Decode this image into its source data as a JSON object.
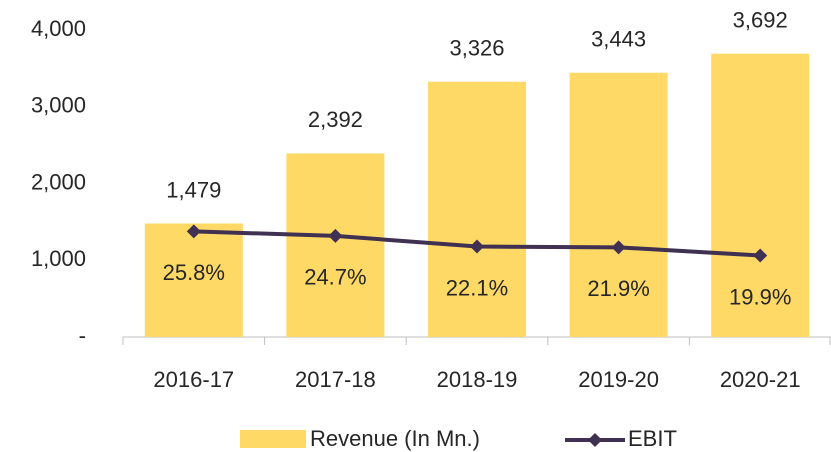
{
  "chart_data": {
    "type": "bar_line",
    "categories": [
      "2016-17",
      "2017-18",
      "2018-19",
      "2019-20",
      "2020-21"
    ],
    "series": [
      {
        "name": "Revenue (In Mn.)",
        "type": "bar",
        "color": "#ffd966",
        "values": [
          1479,
          2392,
          3326,
          3443,
          3692
        ],
        "value_labels": [
          "1,479",
          "2,392",
          "3,326",
          "3,443",
          "3,692"
        ]
      },
      {
        "name": "EBIT",
        "type": "line",
        "axis": "y2",
        "color": "#403152",
        "values": [
          25.8,
          24.7,
          22.1,
          21.9,
          19.9
        ],
        "value_labels": [
          "25.8%",
          "24.7%",
          "22.1%",
          "21.9%",
          "19.9%"
        ]
      }
    ],
    "ylim": [
      0,
      4000
    ],
    "yticks": [
      {
        "value": 0,
        "label": "-"
      },
      {
        "value": 1000,
        "label": "1,000"
      },
      {
        "value": 2000,
        "label": "2,000"
      },
      {
        "value": 3000,
        "label": "3,000"
      },
      {
        "value": 4000,
        "label": "4,000"
      }
    ],
    "y2lim": [
      0,
      75
    ],
    "grid": false,
    "legend": "bottom"
  }
}
